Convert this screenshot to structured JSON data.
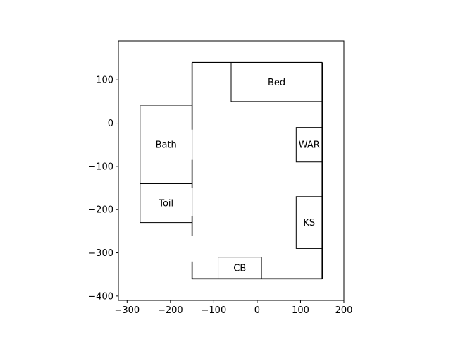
{
  "chart_data": {
    "type": "floor-plan",
    "xlim": [
      -320,
      200
    ],
    "ylim": [
      -410,
      190
    ],
    "x_ticks": [
      -300,
      -200,
      -100,
      0,
      100,
      200
    ],
    "y_ticks": [
      100,
      0,
      -100,
      -200,
      -300,
      -400
    ],
    "outer_room": {
      "x": -150,
      "y": -360,
      "w": 300,
      "h": 500
    },
    "rooms": [
      {
        "id": "bed",
        "label": "Bed",
        "x": -60,
        "y": 50,
        "w": 210,
        "h": 90
      },
      {
        "id": "war",
        "label": "WAR",
        "x": 90,
        "y": -90,
        "w": 60,
        "h": 80
      },
      {
        "id": "ks",
        "label": "KS",
        "x": 90,
        "y": -290,
        "w": 60,
        "h": 120
      },
      {
        "id": "cb",
        "label": "CB",
        "x": -90,
        "y": -360,
        "w": 100,
        "h": 50
      },
      {
        "id": "bath",
        "label": "Bath",
        "x": -270,
        "y": -140,
        "w": 120,
        "h": 180
      },
      {
        "id": "toil",
        "label": "Toil",
        "x": -270,
        "y": -230,
        "w": 120,
        "h": 90
      }
    ],
    "door_gaps": [
      {
        "x": -150,
        "y1": -15,
        "y2": -85
      },
      {
        "x": -150,
        "y1": -150,
        "y2": -215
      },
      {
        "x": -150,
        "y1": -260,
        "y2": -320
      }
    ]
  }
}
